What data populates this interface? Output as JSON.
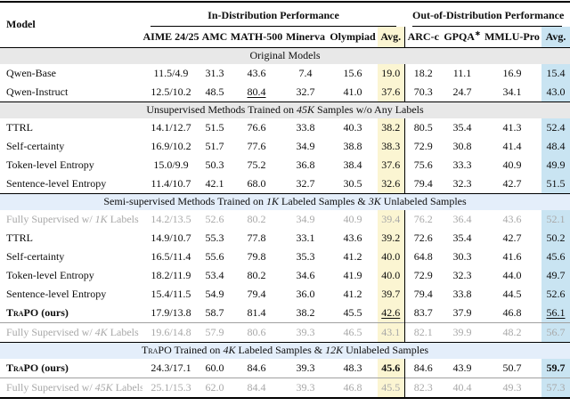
{
  "header": {
    "model_col": "Model",
    "groups": [
      {
        "label": "In-Distribution Performance",
        "span": 6
      },
      {
        "label": "Out-of-Distribution Performance",
        "span": 4
      }
    ],
    "columns": [
      {
        "label": "AIME 24/25"
      },
      {
        "label": "AMC"
      },
      {
        "label": "MATH-500"
      },
      {
        "label": "Minerva"
      },
      {
        "label": "Olympiad"
      },
      {
        "label": "Avg.",
        "highlight": "yellow"
      },
      {
        "label": "ARC-c"
      },
      {
        "label": "GPQA",
        "sup": "∗"
      },
      {
        "label": "MMLU-Pro"
      },
      {
        "label": "Avg.",
        "highlight": "blue"
      }
    ]
  },
  "colors": {
    "yellow_highlight": "#fbf5d2",
    "blue_highlight": "#c9e4f2",
    "gray_band": "#e8e8e8",
    "blue_band": "#e4eefa",
    "muted_text": "#a8a8a8"
  },
  "sections": [
    {
      "band": "gray",
      "title_parts": [
        {
          "t": "Original Models"
        }
      ],
      "rows": [
        {
          "model_parts": [
            {
              "t": "Qwen-Base"
            }
          ],
          "values": [
            "11.5/4.9",
            "31.3",
            "43.6",
            "7.4",
            "15.6",
            "19.0",
            "18.2",
            "11.1",
            "16.9",
            "15.4"
          ]
        },
        {
          "model_parts": [
            {
              "t": "Qwen-Instruct"
            }
          ],
          "values": [
            "12.5/10.2",
            "48.5",
            {
              "v": "80.4",
              "u": true
            },
            "32.7",
            "41.0",
            "37.6",
            "70.3",
            "24.7",
            "34.1",
            "43.0"
          ]
        }
      ]
    },
    {
      "band": "gray",
      "title_parts": [
        {
          "t": "Unsupervised Methods Trained on "
        },
        {
          "t": "45K",
          "i": true
        },
        {
          "t": " Samples w/o Any Labels"
        }
      ],
      "rows": [
        {
          "model_parts": [
            {
              "t": "TTRL"
            }
          ],
          "values": [
            "14.1/12.7",
            "51.5",
            "76.6",
            "33.8",
            "40.3",
            "38.2",
            "80.5",
            "35.4",
            "41.3",
            "52.4"
          ]
        },
        {
          "model_parts": [
            {
              "t": "Self-certainty"
            }
          ],
          "values": [
            "16.9/10.2",
            "51.7",
            "77.6",
            "34.9",
            "38.8",
            "38.3",
            "72.9",
            "30.8",
            "41.4",
            "48.4"
          ]
        },
        {
          "model_parts": [
            {
              "t": "Token-level Entropy"
            }
          ],
          "values": [
            "15.0/9.9",
            "50.3",
            "75.2",
            "36.8",
            "38.4",
            "37.6",
            "75.6",
            "33.3",
            "40.9",
            "49.9"
          ]
        },
        {
          "model_parts": [
            {
              "t": "Sentence-level Entropy"
            }
          ],
          "values": [
            "11.4/10.7",
            "42.1",
            "68.0",
            "32.7",
            "30.5",
            "32.6",
            "79.4",
            "32.3",
            "42.7",
            "51.5"
          ]
        }
      ]
    },
    {
      "band": "blue",
      "title_parts": [
        {
          "t": "Semi-supervised Methods Trained on "
        },
        {
          "t": "1K",
          "i": true
        },
        {
          "t": " Labeled Samples & "
        },
        {
          "t": "3K",
          "i": true
        },
        {
          "t": " Unlabeled Samples"
        }
      ],
      "rows": [
        {
          "muted": true,
          "model_parts": [
            {
              "t": "Fully Supervised w/ "
            },
            {
              "t": "1K",
              "i": true
            },
            {
              "t": " Labels"
            }
          ],
          "values": [
            "14.2/13.5",
            "52.6",
            "80.2",
            "34.9",
            "40.9",
            "39.4",
            "76.2",
            "36.4",
            "43.6",
            "52.1"
          ]
        },
        {
          "model_parts": [
            {
              "t": "TTRL"
            }
          ],
          "values": [
            "14.9/10.7",
            "55.3",
            "77.8",
            "33.1",
            "43.6",
            "39.2",
            "72.6",
            "35.4",
            "42.7",
            "50.2"
          ]
        },
        {
          "model_parts": [
            {
              "t": "Self-certainty"
            }
          ],
          "values": [
            "16.5/11.4",
            "55.6",
            "79.8",
            "35.3",
            "41.2",
            "40.0",
            "64.8",
            "30.3",
            "41.6",
            "45.6"
          ]
        },
        {
          "model_parts": [
            {
              "t": "Token-level Entropy"
            }
          ],
          "values": [
            "18.2/11.9",
            "53.4",
            "80.2",
            "34.6",
            "41.9",
            "40.0",
            "72.9",
            "32.3",
            "44.0",
            "49.7"
          ]
        },
        {
          "model_parts": [
            {
              "t": "Sentence-level Entropy"
            }
          ],
          "values": [
            "15.4/11.5",
            "54.9",
            "79.4",
            "36.0",
            "41.2",
            "39.7",
            "79.4",
            "33.8",
            "44.5",
            "52.6"
          ]
        },
        {
          "bold": true,
          "model_parts": [
            {
              "t": "TraPO",
              "sc": true
            },
            {
              "t": " (ours)"
            }
          ],
          "values": [
            "17.9/13.8",
            "58.7",
            "81.4",
            "38.2",
            "45.5",
            {
              "v": "42.6",
              "u": true
            },
            "83.7",
            "37.9",
            "46.8",
            {
              "v": "56.1",
              "u": true
            }
          ]
        },
        {
          "muted": true,
          "topline": true,
          "model_parts": [
            {
              "t": "Fully Supervised w/ "
            },
            {
              "t": "4K",
              "i": true
            },
            {
              "t": " Labels"
            }
          ],
          "values": [
            "19.6/14.8",
            "57.9",
            "80.6",
            "39.3",
            "46.5",
            "43.1",
            "82.1",
            "39.9",
            "48.2",
            "56.7"
          ]
        }
      ]
    },
    {
      "band": "blue",
      "title_parts": [
        {
          "t": "TraPO",
          "sc": true
        },
        {
          "t": " Trained on "
        },
        {
          "t": "4K",
          "i": true
        },
        {
          "t": " Labeled Samples & "
        },
        {
          "t": "12K",
          "i": true
        },
        {
          "t": " Unlabeled Samples"
        }
      ],
      "rows": [
        {
          "bold": true,
          "model_parts": [
            {
              "t": "TraPO",
              "sc": true
            },
            {
              "t": " (ours)"
            }
          ],
          "values": [
            "24.3/17.1",
            "60.0",
            "84.6",
            "39.3",
            "48.3",
            {
              "v": "45.6",
              "b": true
            },
            "84.6",
            "43.9",
            "50.7",
            {
              "v": "59.7",
              "b": true
            }
          ]
        },
        {
          "muted": true,
          "topline": true,
          "model_parts": [
            {
              "t": "Fully Supervised w/ "
            },
            {
              "t": "45K",
              "i": true
            },
            {
              "t": " Labels"
            }
          ],
          "values": [
            "25.1/15.3",
            "62.0",
            "84.4",
            "39.3",
            "46.8",
            "45.5",
            "82.3",
            "40.4",
            "49.3",
            "57.3"
          ]
        }
      ]
    }
  ]
}
